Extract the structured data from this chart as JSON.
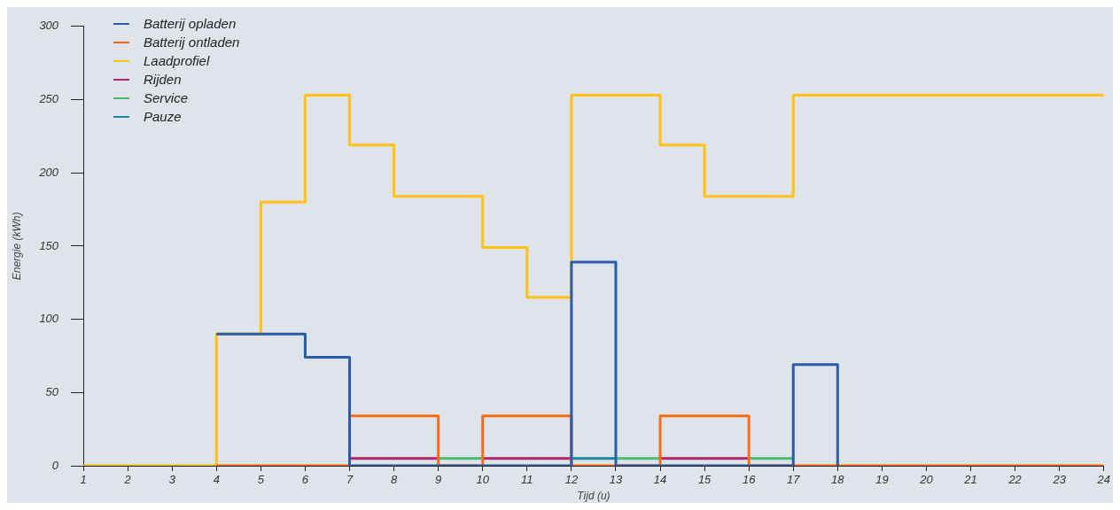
{
  "chart_data": {
    "type": "step",
    "xlabel": "Tijd (u)",
    "ylabel": "Energie (kWh)",
    "x": [
      1,
      2,
      3,
      4,
      5,
      6,
      7,
      8,
      9,
      10,
      11,
      12,
      13,
      14,
      15,
      16,
      17,
      18,
      19,
      20,
      21,
      22,
      23,
      24
    ],
    "xlim": [
      1,
      24
    ],
    "xticks": [
      1,
      2,
      3,
      4,
      5,
      6,
      7,
      8,
      9,
      10,
      11,
      12,
      13,
      14,
      15,
      16,
      17,
      18,
      19,
      20,
      21,
      22,
      23,
      24
    ],
    "ylim": [
      0,
      300
    ],
    "yticks": [
      0,
      50,
      100,
      150,
      200,
      250,
      300
    ],
    "grid": false,
    "legend": "top left",
    "marker": "none",
    "line_style": "solid",
    "series": [
      {
        "name": "Batterij opladen",
        "color": "#2a5caa",
        "values": [
          null,
          null,
          null,
          90,
          90,
          74,
          0,
          0,
          0,
          0,
          0,
          139,
          0,
          0,
          0,
          0,
          69,
          0,
          null,
          null,
          null,
          null,
          null,
          null
        ]
      },
      {
        "name": "Batterij ontladen",
        "color": "#ff6a13",
        "values": [
          null,
          null,
          null,
          0,
          0,
          0,
          34,
          34,
          0,
          34,
          34,
          0,
          0,
          34,
          34,
          0,
          0,
          0,
          0,
          0,
          0,
          0,
          0,
          0
        ]
      },
      {
        "name": "Laadprofiel",
        "color": "#ffc20e",
        "values": [
          0,
          0,
          0,
          90,
          180,
          253,
          219,
          184,
          184,
          149,
          115,
          253,
          253,
          219,
          184,
          184,
          253,
          253,
          253,
          253,
          253,
          253,
          253,
          253
        ]
      },
      {
        "name": "Rijden",
        "color": "#b0246a",
        "x": [
          7,
          9,
          9.5,
          10,
          12,
          13,
          14,
          16
        ],
        "values": [
          5,
          5,
          null,
          5,
          5,
          null,
          5,
          5
        ]
      },
      {
        "name": "Service",
        "color": "#4cb96e",
        "x": [
          9,
          10,
          10.5,
          13,
          14,
          15,
          16,
          17
        ],
        "values": [
          5,
          5,
          null,
          5,
          5,
          null,
          5,
          5
        ]
      },
      {
        "name": "Pauze",
        "color": "#1a8a9a",
        "x": [
          12,
          13
        ],
        "values": [
          5,
          5
        ]
      }
    ]
  }
}
